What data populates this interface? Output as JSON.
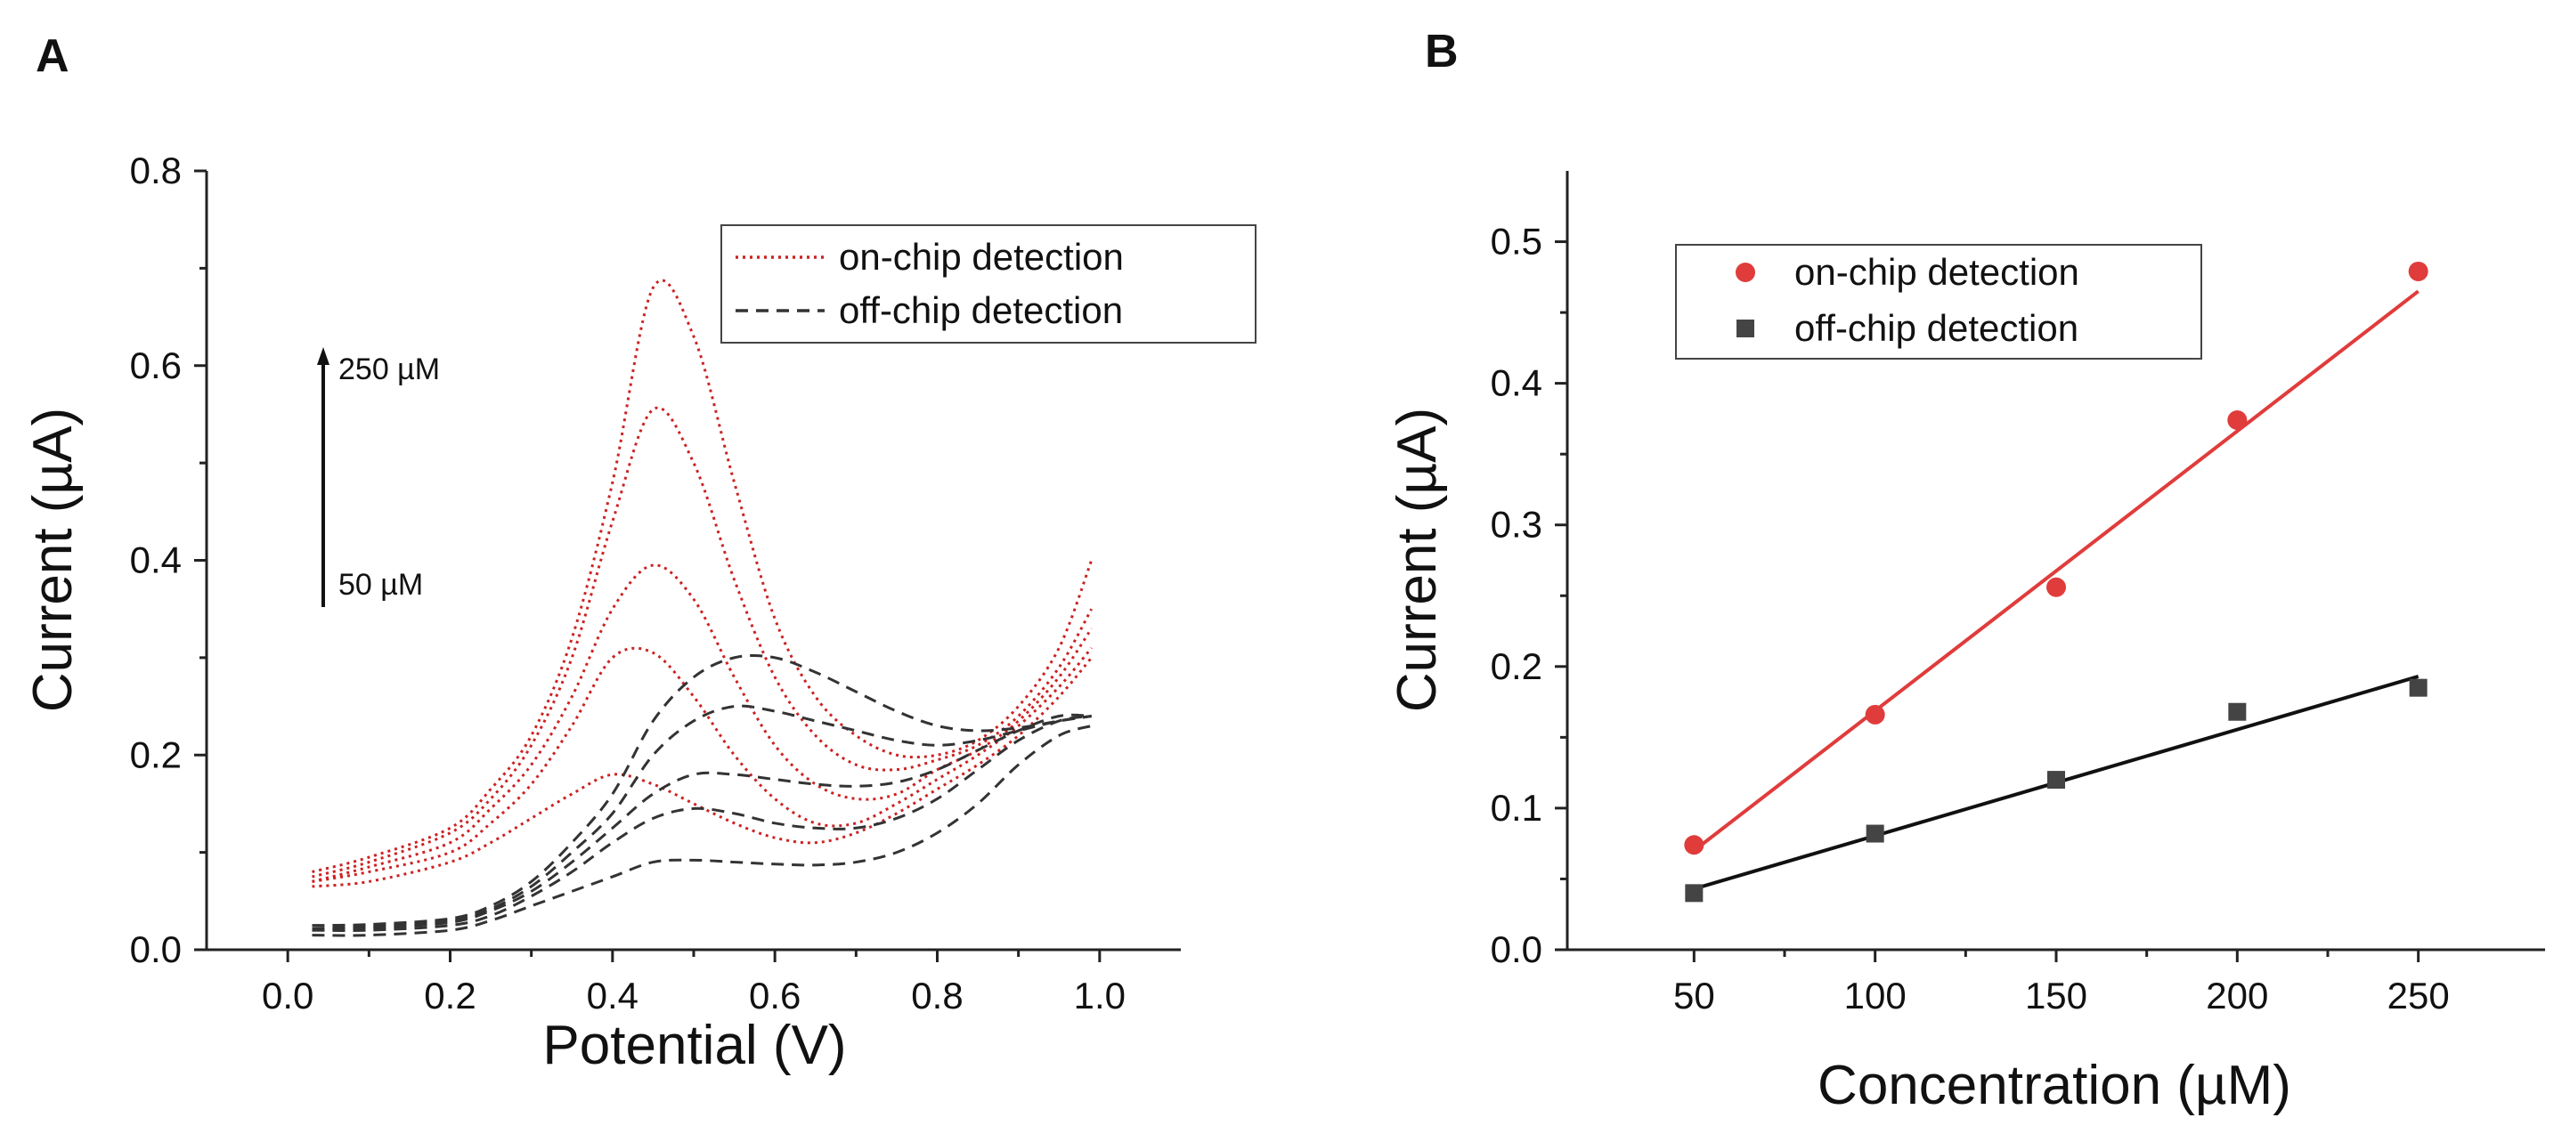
{
  "chart_data": [
    {
      "panel": "A",
      "type": "line",
      "xlabel": "Potential (V)",
      "ylabel": "Current (µA)",
      "xlim": [
        -0.1,
        1.1
      ],
      "ylim": [
        0.0,
        0.8
      ],
      "xticks": [
        0.0,
        0.2,
        0.4,
        0.6,
        0.8,
        1.0
      ],
      "xtick_labels": [
        "0.0",
        "0.2",
        "0.4",
        "0.6",
        "0.8",
        "1.0"
      ],
      "yticks": [
        0.0,
        0.2,
        0.4,
        0.6,
        0.8
      ],
      "ytick_labels": [
        "0.0",
        "0.2",
        "0.4",
        "0.6",
        "0.8"
      ],
      "legend": {
        "position": "top-right",
        "entries": [
          {
            "label": "on-chip detection",
            "style": "dotted",
            "color": "#cc2222"
          },
          {
            "label": "off-chip detection",
            "style": "dashed",
            "color": "#333333"
          }
        ]
      },
      "annotation": {
        "top": "250 µM",
        "bottom": "50 µM",
        "arrow": "up"
      },
      "x": [
        0.03,
        0.1,
        0.2,
        0.25,
        0.3,
        0.35,
        0.4,
        0.45,
        0.5,
        0.55,
        0.6,
        0.65,
        0.7,
        0.75,
        0.8,
        0.85,
        0.9,
        0.95,
        0.99
      ],
      "series": [
        {
          "name": "on-chip 50 µM",
          "group": "on-chip",
          "values": [
            0.065,
            0.07,
            0.09,
            0.11,
            0.135,
            0.16,
            0.18,
            0.17,
            0.15,
            0.13,
            0.115,
            0.11,
            0.12,
            0.14,
            0.165,
            0.19,
            0.22,
            0.26,
            0.3
          ]
        },
        {
          "name": "on-chip 100 µM",
          "group": "on-chip",
          "values": [
            0.07,
            0.08,
            0.1,
            0.13,
            0.17,
            0.23,
            0.3,
            0.305,
            0.26,
            0.2,
            0.155,
            0.13,
            0.13,
            0.15,
            0.175,
            0.2,
            0.23,
            0.27,
            0.31
          ]
        },
        {
          "name": "on-chip 150 µM",
          "group": "on-chip",
          "values": [
            0.07,
            0.085,
            0.11,
            0.145,
            0.19,
            0.26,
            0.35,
            0.395,
            0.36,
            0.28,
            0.21,
            0.17,
            0.155,
            0.16,
            0.185,
            0.205,
            0.235,
            0.28,
            0.33
          ]
        },
        {
          "name": "on-chip 200 µM",
          "group": "on-chip",
          "values": [
            0.075,
            0.09,
            0.12,
            0.155,
            0.21,
            0.3,
            0.44,
            0.555,
            0.5,
            0.38,
            0.28,
            0.22,
            0.19,
            0.185,
            0.195,
            0.21,
            0.24,
            0.29,
            0.35
          ]
        },
        {
          "name": "on-chip 250 µM",
          "group": "on-chip",
          "values": [
            0.08,
            0.095,
            0.125,
            0.165,
            0.22,
            0.32,
            0.48,
            0.68,
            0.63,
            0.48,
            0.34,
            0.26,
            0.22,
            0.2,
            0.2,
            0.215,
            0.25,
            0.31,
            0.4
          ]
        },
        {
          "name": "off-chip 50 µM",
          "group": "off-chip",
          "values": [
            0.015,
            0.015,
            0.02,
            0.03,
            0.045,
            0.06,
            0.075,
            0.09,
            0.092,
            0.09,
            0.088,
            0.087,
            0.09,
            0.1,
            0.12,
            0.15,
            0.19,
            0.22,
            0.23
          ]
        },
        {
          "name": "off-chip 100 µM",
          "group": "off-chip",
          "values": [
            0.02,
            0.02,
            0.025,
            0.035,
            0.055,
            0.08,
            0.11,
            0.135,
            0.145,
            0.14,
            0.13,
            0.125,
            0.125,
            0.135,
            0.155,
            0.185,
            0.215,
            0.235,
            0.24
          ]
        },
        {
          "name": "off-chip 150 µM",
          "group": "off-chip",
          "values": [
            0.02,
            0.022,
            0.028,
            0.04,
            0.06,
            0.09,
            0.125,
            0.16,
            0.18,
            0.18,
            0.175,
            0.17,
            0.168,
            0.172,
            0.185,
            0.205,
            0.225,
            0.24,
            0.24
          ]
        },
        {
          "name": "off-chip 200 µM",
          "group": "off-chip",
          "values": [
            0.022,
            0.024,
            0.03,
            0.042,
            0.065,
            0.1,
            0.14,
            0.2,
            0.235,
            0.25,
            0.245,
            0.235,
            0.225,
            0.215,
            0.21,
            0.215,
            0.225,
            0.235,
            0.24
          ]
        },
        {
          "name": "off-chip 250 µM",
          "group": "off-chip",
          "values": [
            0.025,
            0.026,
            0.032,
            0.045,
            0.07,
            0.11,
            0.16,
            0.235,
            0.28,
            0.3,
            0.3,
            0.285,
            0.265,
            0.245,
            0.23,
            0.225,
            0.228,
            0.235,
            0.24
          ]
        }
      ]
    },
    {
      "panel": "B",
      "type": "scatter",
      "xlabel": "Concentration (µM)",
      "ylabel": "Current (µA)",
      "xlim": [
        15,
        285
      ],
      "ylim": [
        0.0,
        0.55
      ],
      "xticks": [
        50,
        100,
        150,
        200,
        250
      ],
      "xtick_labels": [
        "50",
        "100",
        "150",
        "200",
        "250"
      ],
      "yticks": [
        0.0,
        0.1,
        0.2,
        0.3,
        0.4,
        0.5
      ],
      "ytick_labels": [
        "0.0",
        "0.1",
        "0.2",
        "0.3",
        "0.4",
        "0.5"
      ],
      "legend": {
        "position": "top-left",
        "entries": [
          {
            "label": "on-chip detection",
            "marker": "circle",
            "color": "#e03c3c"
          },
          {
            "label": "off-chip detection",
            "marker": "square",
            "color": "#444444"
          }
        ]
      },
      "x": [
        50,
        100,
        150,
        200,
        250
      ],
      "series": [
        {
          "name": "on-chip detection",
          "color": "#e03c3c",
          "marker": "circle",
          "values": [
            0.074,
            0.166,
            0.256,
            0.374,
            0.479
          ],
          "fit": {
            "x": [
              50,
              250
            ],
            "y": [
              0.07,
              0.465
            ]
          }
        },
        {
          "name": "off-chip detection",
          "color": "#444444",
          "marker": "square",
          "values": [
            0.04,
            0.082,
            0.12,
            0.168,
            0.185
          ],
          "fit": {
            "x": [
              50,
              250
            ],
            "y": [
              0.043,
              0.193
            ]
          }
        }
      ]
    }
  ]
}
